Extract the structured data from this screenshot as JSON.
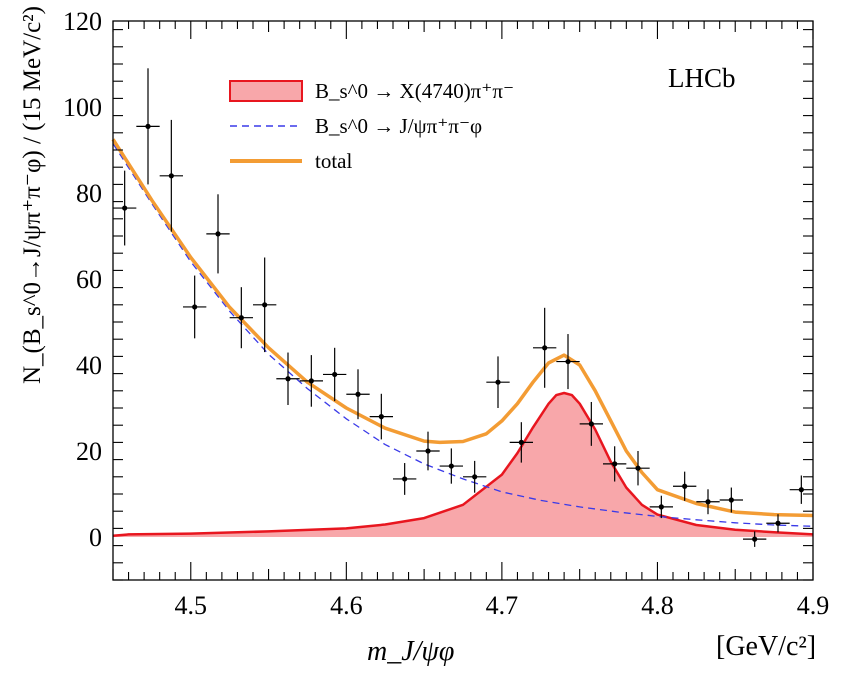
{
  "chart_data": {
    "type": "scatter",
    "experiment_label": "LHCb",
    "xlabel": "m_J/ψφ",
    "xunit": "[GeV/c²]",
    "ylabel": "N_(B_s^0→J/ψπ⁺π⁻φ) / (15 MeV/c²)",
    "xlim": [
      4.45,
      4.9
    ],
    "ylim": [
      -10,
      120
    ],
    "x_ticks": [
      4.5,
      4.6,
      4.7,
      4.8,
      4.9
    ],
    "x_tick_labels": [
      "4.5",
      "4.6",
      "4.7",
      "4.8",
      "4.9"
    ],
    "y_ticks": [
      0,
      20,
      40,
      60,
      80,
      100,
      120
    ],
    "y_tick_labels": [
      "0",
      "20",
      "40",
      "60",
      "80",
      "100",
      "120"
    ],
    "bin_half_width": 0.0075,
    "legend_position": "top-center",
    "legend": [
      {
        "label": "B_s^0 → X(4740)π⁺π⁻",
        "style": "filled",
        "color": "#e8161f",
        "fill": "#f8a7aa"
      },
      {
        "label": "B_s^0 → J/ψπ⁺π⁻φ",
        "style": "dashed",
        "color": "#3a3ae8"
      },
      {
        "label": "total",
        "style": "solid",
        "color": "#f39c34"
      }
    ],
    "series": [
      {
        "name": "data",
        "x": [
          4.4575,
          4.4725,
          4.4875,
          4.5025,
          4.5175,
          4.5325,
          4.5475,
          4.5625,
          4.5775,
          4.5925,
          4.6075,
          4.6225,
          4.6375,
          4.6525,
          4.6675,
          4.6825,
          4.6975,
          4.7125,
          4.7275,
          4.7425,
          4.7575,
          4.7725,
          4.7875,
          4.8025,
          4.8175,
          4.8325,
          4.8475,
          4.8625,
          4.8775,
          4.8925
        ],
        "y": [
          76.5,
          95.5,
          84,
          53.5,
          70.5,
          51,
          54,
          36.8,
          36.3,
          37.8,
          33.2,
          28,
          13.5,
          20,
          16.5,
          14,
          36,
          22,
          44,
          40.8,
          26.3,
          17,
          16,
          7,
          11.8,
          8.2,
          8.6,
          -0.5,
          3.2,
          11
        ],
        "yerr": [
          8.7,
          13.5,
          13,
          7.3,
          9.2,
          7.1,
          11,
          6.1,
          6,
          6.2,
          5.8,
          5.3,
          3.7,
          4.5,
          4.1,
          3.7,
          6,
          4.7,
          9.3,
          6.4,
          5.1,
          4.1,
          4,
          2.6,
          3.4,
          2.9,
          2.9,
          1.8,
          2.1,
          3.3
        ]
      },
      {
        "name": "B_s^0 → J/ψπ⁺π⁻φ",
        "x": [
          4.45,
          4.475,
          4.5,
          4.525,
          4.55,
          4.575,
          4.6,
          4.625,
          4.65,
          4.675,
          4.7,
          4.725,
          4.75,
          4.775,
          4.8,
          4.825,
          4.85,
          4.875,
          4.9
        ],
        "y": [
          91.5,
          77.5,
          64,
          52.5,
          42.5,
          34.5,
          27.5,
          21.5,
          17,
          13.5,
          10.5,
          8.5,
          7,
          5.8,
          4.8,
          4,
          3.3,
          2.8,
          2.5
        ]
      },
      {
        "name": "B_s^0 → X(4740)π⁺π⁻",
        "x": [
          4.45,
          4.46,
          4.5,
          4.55,
          4.6,
          4.625,
          4.65,
          4.675,
          4.7,
          4.71,
          4.72,
          4.73,
          4.735,
          4.74,
          4.745,
          4.75,
          4.76,
          4.77,
          4.78,
          4.79,
          4.8,
          4.825,
          4.85,
          4.875,
          4.9
        ],
        "y": [
          0.3,
          0.6,
          0.8,
          1.3,
          2,
          2.9,
          4.4,
          7.5,
          14.5,
          19.5,
          25.5,
          31,
          33,
          33.5,
          33,
          31,
          25,
          17.5,
          11.5,
          7.5,
          5.2,
          2.8,
          1.7,
          1.1,
          0.6
        ]
      },
      {
        "name": "total",
        "x": [
          4.45,
          4.475,
          4.5,
          4.525,
          4.55,
          4.575,
          4.6,
          4.625,
          4.65,
          4.66,
          4.675,
          4.69,
          4.7,
          4.71,
          4.72,
          4.73,
          4.74,
          4.75,
          4.76,
          4.77,
          4.78,
          4.79,
          4.8,
          4.825,
          4.85,
          4.875,
          4.9
        ],
        "y": [
          92.5,
          78.3,
          65,
          53.4,
          44,
          36,
          30,
          25.3,
          22.3,
          22,
          22.2,
          24,
          27,
          31,
          36,
          40.5,
          42.3,
          40,
          34,
          27,
          20,
          15,
          11,
          7.8,
          5.8,
          5.2,
          5
        ]
      }
    ]
  }
}
